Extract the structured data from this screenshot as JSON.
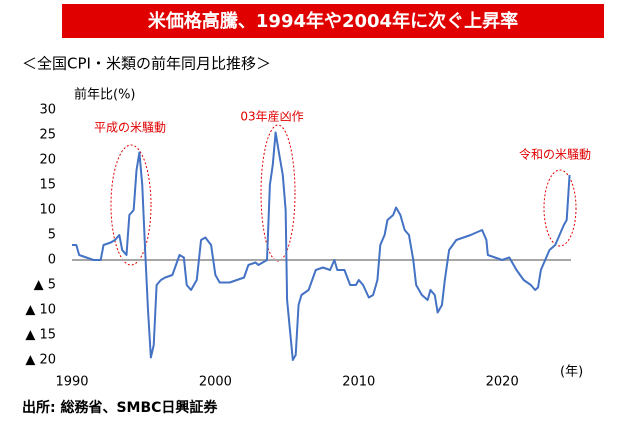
{
  "chart_data": {
    "type": "line",
    "title": "米価格高騰、1994年や2004年に次ぐ上昇率",
    "subtitle": "＜全国CPI・米類の前年同月比推移＞",
    "y_label": "前年比(%)",
    "x_label": "(年)",
    "source": "出所: 総務省、SMBC日興証券",
    "annotations": [
      "平成の米騒動",
      "03年産凶作",
      "令和の米騒動"
    ],
    "xlim": [
      1990,
      2024.8
    ],
    "xticks": [
      1990,
      2000,
      2010,
      2020
    ],
    "ylim": [
      -20,
      30
    ],
    "yticks": [
      {
        "value": -20,
        "label": "▲ 20"
      },
      {
        "value": -15,
        "label": "▲ 15"
      },
      {
        "value": -10,
        "label": "▲ 10"
      },
      {
        "value": -5,
        "label": "▲ 5"
      },
      0,
      5,
      10,
      15,
      20,
      25,
      30
    ],
    "zero_line": true,
    "x": [
      1990.0,
      1990.3,
      1990.5,
      1991.0,
      1991.5,
      1992.0,
      1992.2,
      1992.7,
      1993.0,
      1993.3,
      1993.5,
      1993.8,
      1994.0,
      1994.3,
      1994.5,
      1994.7,
      1994.9,
      1995.1,
      1995.3,
      1995.5,
      1995.7,
      1995.9,
      1996.2,
      1996.5,
      1997.0,
      1997.5,
      1997.8,
      1998.0,
      1998.3,
      1998.7,
      1999.0,
      1999.3,
      1999.7,
      2000.0,
      2000.3,
      2001.0,
      2001.5,
      2002.0,
      2002.3,
      2002.8,
      2003.0,
      2003.3,
      2003.6,
      2003.8,
      2004.0,
      2004.2,
      2004.4,
      2004.7,
      2004.9,
      2005.0,
      2005.2,
      2005.4,
      2005.6,
      2005.8,
      2006.0,
      2006.5,
      2007.0,
      2007.5,
      2008.0,
      2008.3,
      2008.5,
      2009.0,
      2009.4,
      2009.8,
      2010.0,
      2010.3,
      2010.7,
      2011.0,
      2011.3,
      2011.5,
      2011.8,
      2012.0,
      2012.4,
      2012.6,
      2012.9,
      2013.2,
      2013.5,
      2013.8,
      2014.0,
      2014.4,
      2014.8,
      2015.0,
      2015.3,
      2015.5,
      2015.8,
      2016.0,
      2016.3,
      2016.8,
      2017.3,
      2017.8,
      2018.2,
      2018.6,
      2018.9,
      2019.0,
      2019.5,
      2020.0,
      2020.5,
      2021.0,
      2021.5,
      2022.0,
      2022.3,
      2022.5,
      2022.7,
      2023.0,
      2023.3,
      2023.7,
      2024.0,
      2024.3,
      2024.5,
      2024.7
    ],
    "series": [
      {
        "name": "米類",
        "color": "#4472c4",
        "values": [
          3,
          3,
          1,
          0.5,
          0,
          0,
          3,
          3.5,
          4,
          5,
          2,
          1,
          9,
          10,
          18,
          21.5,
          15,
          2,
          -10,
          -19.5,
          -17,
          -5,
          -4,
          -3.5,
          -3,
          1,
          0.5,
          -5,
          -6,
          -4,
          4,
          4.5,
          3,
          -3,
          -4.5,
          -4.5,
          -4,
          -3.5,
          -1,
          -0.5,
          -1,
          -0.5,
          0,
          15,
          19,
          25.5,
          22,
          17,
          10,
          -8,
          -14,
          -20,
          -19,
          -9,
          -7,
          -6,
          -2,
          -1.5,
          -2,
          0,
          -2,
          -2,
          -5,
          -5,
          -4,
          -5,
          -7.5,
          -7,
          -4,
          3,
          5,
          8,
          9,
          10.5,
          9,
          6,
          5,
          0,
          -5,
          -7,
          -8,
          -6,
          -7,
          -10.5,
          -9,
          -4,
          2,
          4,
          4.5,
          5,
          5.5,
          6,
          4,
          1,
          0.5,
          0,
          0.5,
          -2,
          -4,
          -5,
          -6,
          -5.5,
          -2,
          0,
          2,
          3,
          5,
          7,
          8,
          17
        ]
      }
    ]
  }
}
